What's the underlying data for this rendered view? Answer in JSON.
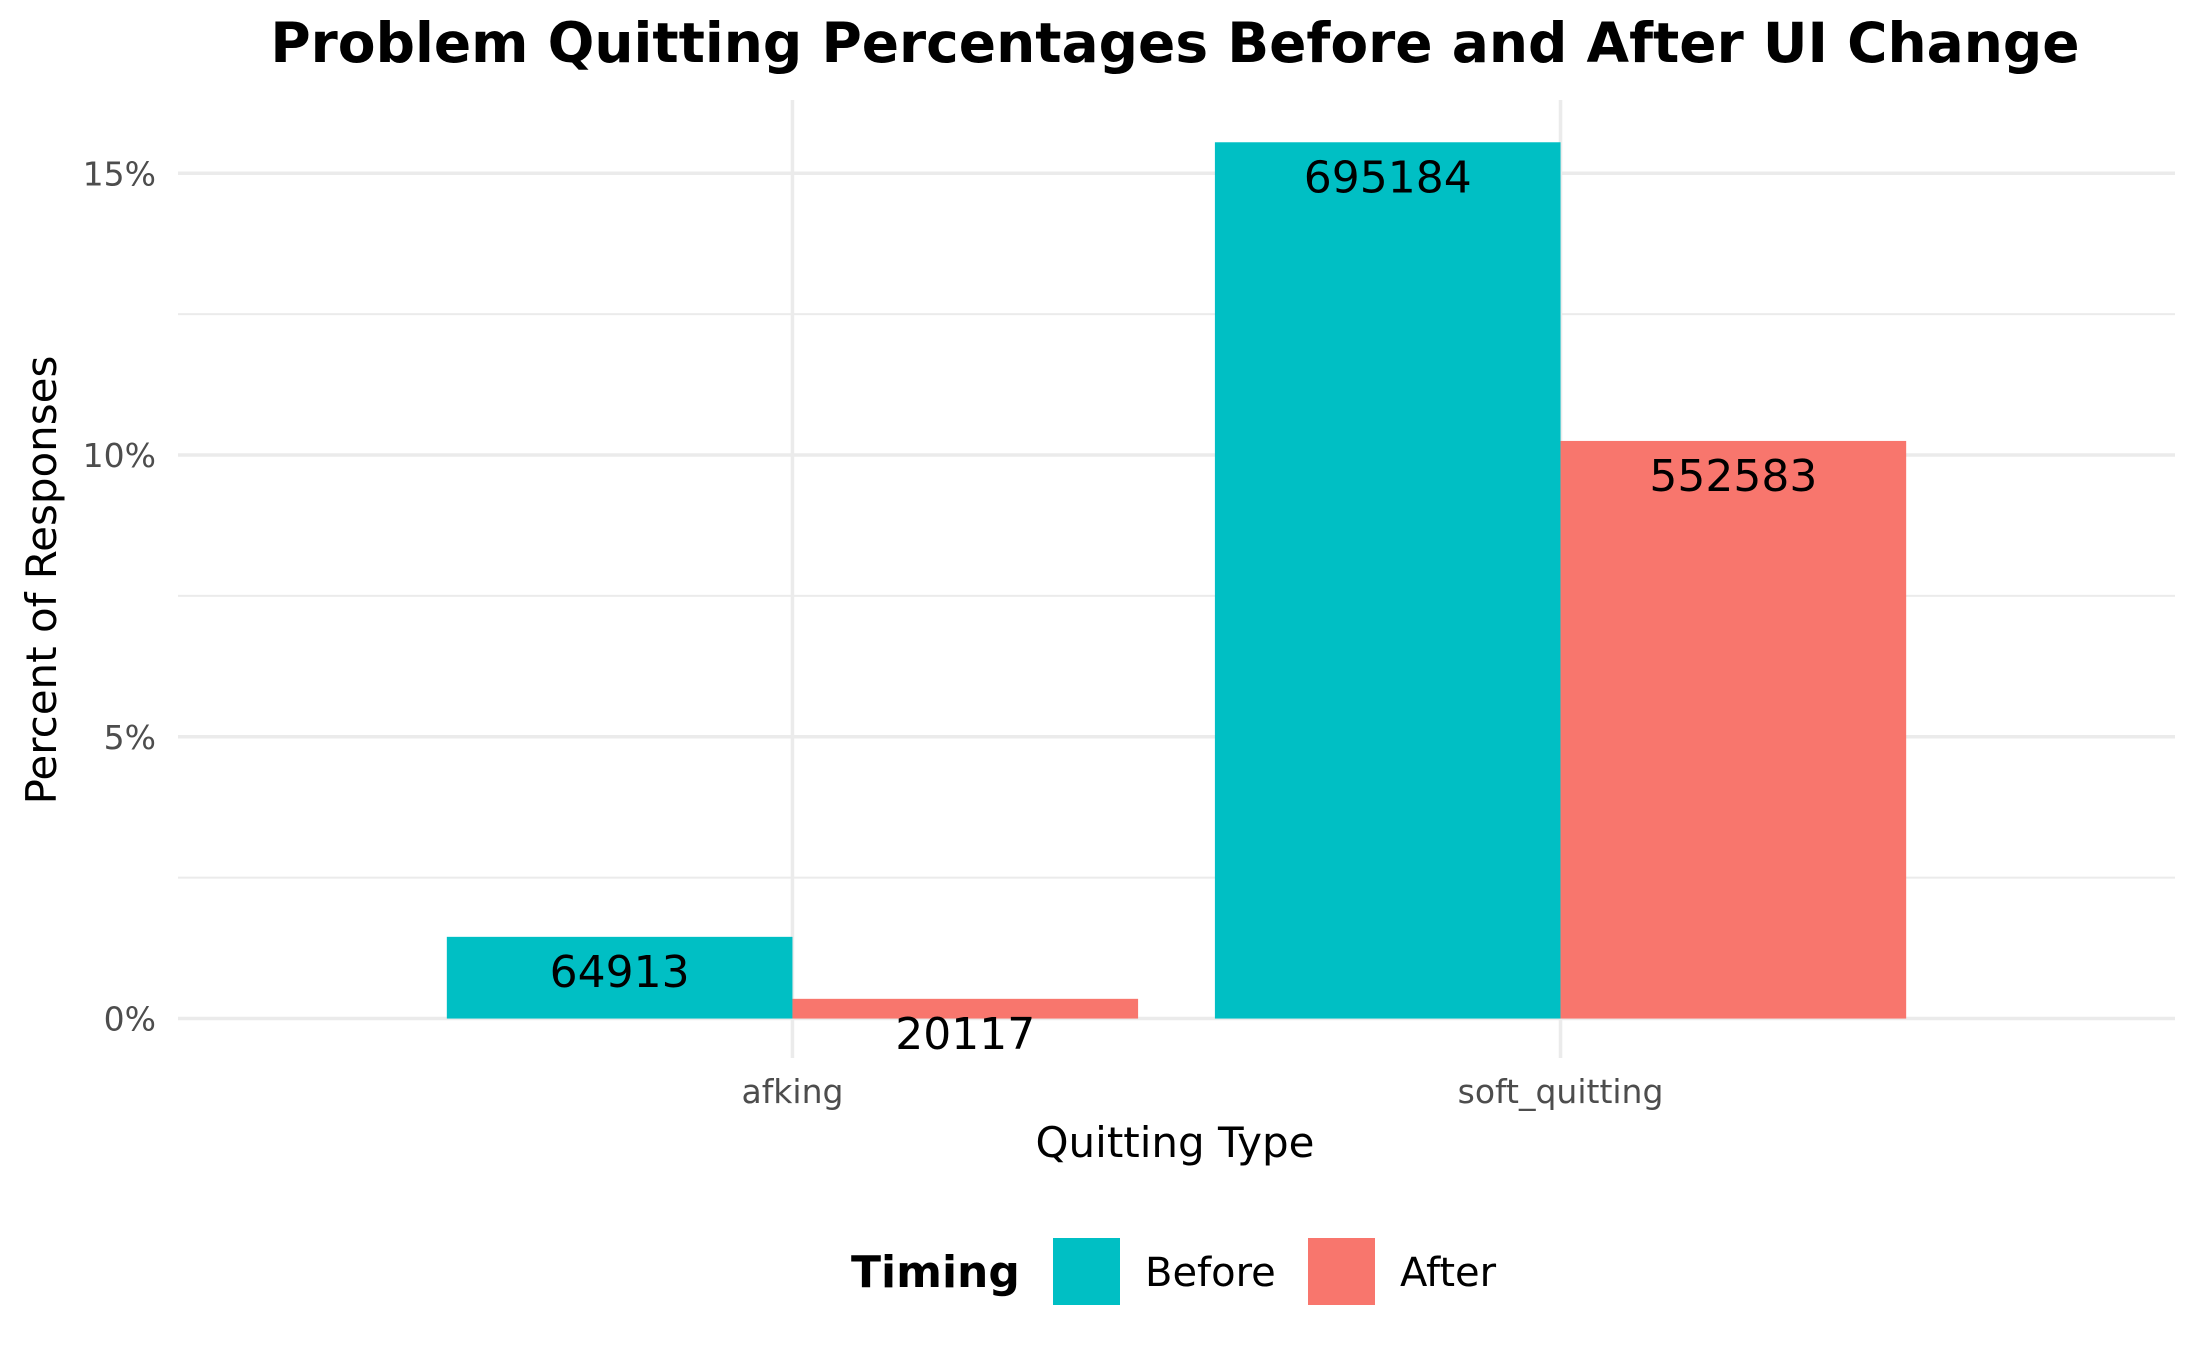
{
  "chart_data": {
    "type": "bar",
    "title": "Problem Quitting Percentages Before and After UI Change",
    "xlabel": "Quitting Type",
    "ylabel": "Percent of Responses",
    "categories": [
      "afking",
      "soft_quitting"
    ],
    "series": [
      {
        "name": "Before",
        "color": "#00BFC4",
        "values": [
          1.45,
          15.55
        ],
        "labels": [
          "64913",
          "695184"
        ]
      },
      {
        "name": "After",
        "color": "#F8766D",
        "values": [
          0.35,
          10.25
        ],
        "labels": [
          "20117",
          "552583"
        ]
      }
    ],
    "ylim": [
      -0.7,
      16.3
    ],
    "yticks": [
      0,
      5,
      10,
      15
    ],
    "ytick_labels": [
      "0%",
      "5%",
      "10%",
      "15%"
    ],
    "grid": true,
    "legend": {
      "title": "Timing",
      "position": "bottom",
      "items": [
        "Before",
        "After"
      ]
    }
  }
}
